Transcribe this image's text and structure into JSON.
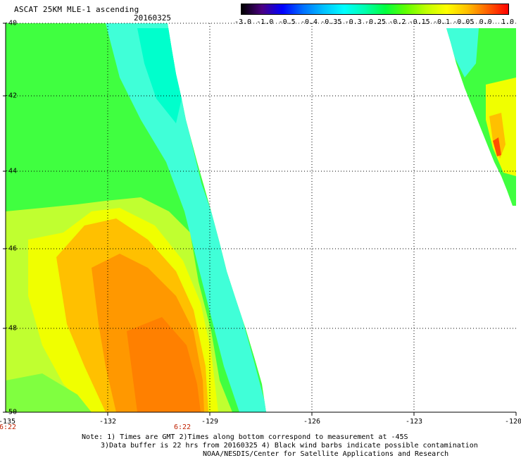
{
  "header": {
    "title": "ASCAT 25KM MLE-1 ascending",
    "date": "20160325"
  },
  "colorbar": {
    "labels": [
      "-3.0",
      "-1.0",
      "-0.5",
      "-0.4",
      "-0.35",
      "-0.3",
      "-0.25",
      "-0.2",
      "-0.15",
      "-0.1",
      "-0.05",
      "0.0",
      "1.0"
    ],
    "colors": [
      "#000000",
      "#4b0082",
      "#0000ff",
      "#0070ff",
      "#00c0ff",
      "#00ffff",
      "#00ffb0",
      "#00ff40",
      "#60ff00",
      "#c0ff00",
      "#ffff00",
      "#ffc000",
      "#ff6000",
      "#ff0000"
    ]
  },
  "map": {
    "lat_labels": [
      "-40",
      "-42",
      "-44",
      "-46",
      "-48",
      "-50"
    ],
    "lon_labels": [
      "-135",
      "-132",
      "-129",
      "-126",
      "-123",
      "-120"
    ],
    "time_labels": [
      "6:22",
      "6:22"
    ],
    "colors": {
      "cyan": "#00ffcc",
      "cyan_light": "#40ffd8",
      "green": "#40ff40",
      "green_light": "#80ff40",
      "yellow_green": "#c0ff30",
      "yellow": "#f0ff00",
      "orange_light": "#ffc000",
      "orange": "#ff9800",
      "orange_dark": "#ff8000",
      "red": "#ff5000"
    }
  },
  "notes": {
    "line1": "Note: 1) Times are GMT 2)Times along bottom correspond to measurement at -45S",
    "line2": "3)Data buffer is 22 hrs from 20160325 4) Black wind barbs indicate possible contamination",
    "line3": "NOAA/NESDIS/Center for Satellite Applications and Research"
  }
}
